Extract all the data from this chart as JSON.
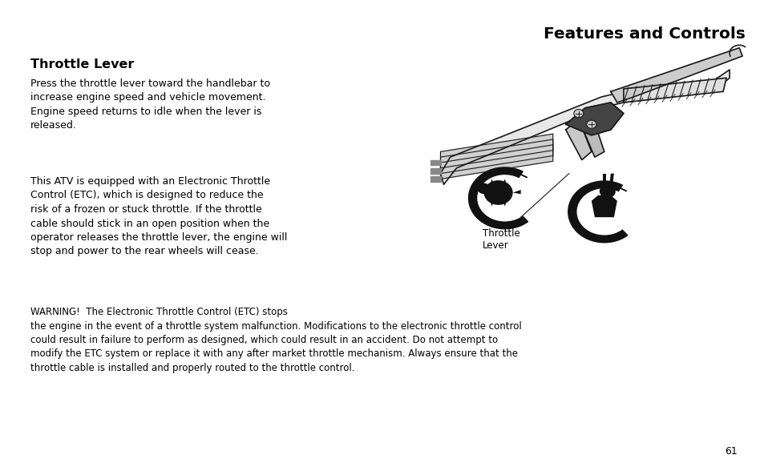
{
  "bg_color": "#ffffff",
  "page_number": "61",
  "header_title": "Features and Controls",
  "section_title": "Throttle Lever",
  "paragraph1": "Press the throttle lever toward the handlebar to\nincrease engine speed and vehicle movement.\nEngine speed returns to idle when the lever is\nreleased.",
  "paragraph2": "This ATV is equipped with an Electronic Throttle\nControl (ETC), which is designed to reduce the\nrisk of a frozen or stuck throttle. If the throttle\ncable should stick in an open position when the\noperator releases the throttle lever, the engine will\nstop and power to the rear wheels will cease.",
  "warning_full": "WARNING!  The Electronic Throttle Control (ETC) stops\nthe engine in the event of a throttle system malfunction. Modifications to the electronic throttle control\ncould result in failure to perform as designed, which could result in an accident. Do not attempt to\nmodify the ETC system or replace it with any after market throttle mechanism. Always ensure that the\nthrottle cable is installed and properly routed to the throttle control.",
  "label_throttle": "Throttle\nLever",
  "font_color": "#000000",
  "body_fontsize": 9.0,
  "warning_fontsize": 8.5,
  "title_fontsize": 14.5,
  "section_fontsize": 11.5
}
